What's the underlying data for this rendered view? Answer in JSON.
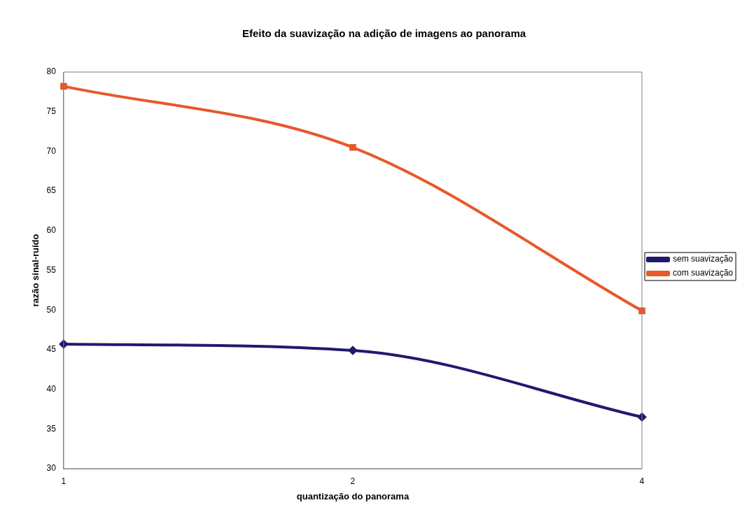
{
  "chart_data": {
    "type": "line",
    "title": "Efeito da suavização na adição de imagens ao panorama",
    "xlabel": "quantização do panorama",
    "ylabel": "razão sinal-ruído",
    "categories": [
      "1",
      "2",
      "4"
    ],
    "series": [
      {
        "name": "sem suavização",
        "color": "#1f1a6e",
        "marker": "diamond",
        "values": [
          45.7,
          44.9,
          36.5
        ]
      },
      {
        "name": "com suavização",
        "color": "#e8582a",
        "marker": "square",
        "values": [
          78.2,
          70.5,
          49.9
        ]
      }
    ],
    "ylim": [
      30,
      80
    ],
    "yticks": [
      30,
      35,
      40,
      45,
      50,
      55,
      60,
      65,
      70,
      75,
      80
    ],
    "grid": false,
    "legend": "right"
  }
}
